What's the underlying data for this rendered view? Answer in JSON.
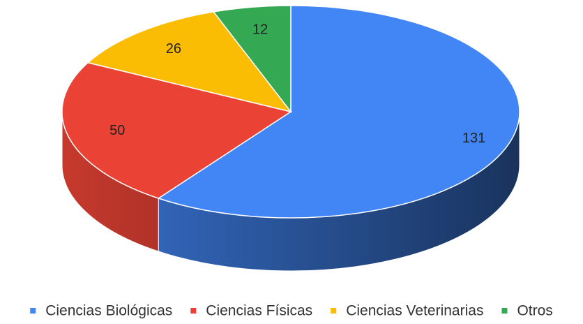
{
  "chart_data": {
    "type": "pie",
    "three_d": true,
    "categories": [
      "Ciencias Biológicas",
      "Ciencias Físicas",
      "Ciencias Veterinarias",
      "Otros"
    ],
    "values": [
      131,
      50,
      26,
      12
    ],
    "colors": [
      "#4285f4",
      "#ea4335",
      "#fbbc04",
      "#34a853"
    ],
    "legend": "bottom"
  }
}
